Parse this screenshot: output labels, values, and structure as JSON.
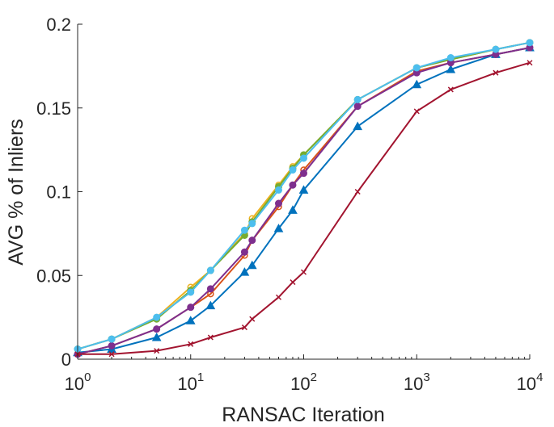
{
  "chart_data": {
    "type": "line",
    "title": "",
    "xlabel": "RANSAC Iteration",
    "ylabel": "AVG % of Inliers",
    "x_scale": "log",
    "xlim": [
      1,
      10000
    ],
    "ylim": [
      0,
      0.2
    ],
    "x_ticks": [
      {
        "base": "10",
        "exp": "0"
      },
      {
        "base": "10",
        "exp": "1"
      },
      {
        "base": "10",
        "exp": "2"
      },
      {
        "base": "10",
        "exp": "3"
      },
      {
        "base": "10",
        "exp": "4"
      }
    ],
    "y_ticks": [
      "0",
      "0.05",
      "0.1",
      "0.15",
      "0.2"
    ],
    "grid": false,
    "series": [
      {
        "color": "#0072BD",
        "marker": "triangle",
        "x": [
          1,
          2,
          5,
          10,
          15,
          30,
          35,
          60,
          80,
          100,
          300,
          1000,
          2000,
          5000,
          10000
        ],
        "values": [
          0.004,
          0.006,
          0.013,
          0.023,
          0.032,
          0.052,
          0.056,
          0.078,
          0.089,
          0.101,
          0.139,
          0.164,
          0.173,
          0.182,
          0.186
        ]
      },
      {
        "color": "#D95319",
        "marker": "circle-open",
        "x": [
          1,
          2,
          5,
          10,
          15,
          30,
          35,
          60,
          80,
          100,
          300,
          1000,
          2000,
          5000,
          10000
        ],
        "values": [
          0.003,
          0.008,
          0.018,
          0.031,
          0.039,
          0.062,
          0.071,
          0.091,
          0.104,
          0.113,
          0.151,
          0.172,
          0.177,
          0.182,
          0.186
        ]
      },
      {
        "color": "#EDB120",
        "marker": "circle-open",
        "x": [
          1,
          2,
          5,
          10,
          15,
          30,
          35,
          60,
          80,
          100,
          300,
          1000,
          2000,
          5000,
          10000
        ],
        "values": [
          0.006,
          0.012,
          0.025,
          0.043,
          0.053,
          0.075,
          0.084,
          0.104,
          0.115,
          0.122,
          0.155,
          0.174,
          0.179,
          0.185,
          0.189
        ]
      },
      {
        "color": "#77AC30",
        "marker": "circle",
        "x": [
          1,
          2,
          5,
          10,
          15,
          30,
          35,
          60,
          80,
          100,
          300,
          1000,
          2000,
          5000,
          10000
        ],
        "values": [
          0.006,
          0.012,
          0.024,
          0.041,
          0.053,
          0.074,
          0.082,
          0.103,
          0.114,
          0.122,
          0.155,
          0.174,
          0.179,
          0.185,
          0.189
        ]
      },
      {
        "color": "#7E2F8E",
        "marker": "circle",
        "x": [
          1,
          2,
          5,
          10,
          15,
          30,
          35,
          60,
          80,
          100,
          300,
          1000,
          2000,
          5000,
          10000
        ],
        "values": [
          0.003,
          0.008,
          0.018,
          0.031,
          0.042,
          0.064,
          0.071,
          0.093,
          0.104,
          0.111,
          0.151,
          0.171,
          0.177,
          0.182,
          0.186
        ]
      },
      {
        "color": "#4DBEEE",
        "marker": "circle",
        "x": [
          1,
          2,
          5,
          10,
          15,
          30,
          35,
          60,
          80,
          100,
          300,
          1000,
          2000,
          5000,
          10000
        ],
        "values": [
          0.006,
          0.012,
          0.025,
          0.04,
          0.053,
          0.077,
          0.081,
          0.101,
          0.113,
          0.12,
          0.155,
          0.174,
          0.18,
          0.185,
          0.189
        ]
      },
      {
        "color": "#A2142F",
        "marker": "x",
        "x": [
          1,
          2,
          5,
          10,
          15,
          30,
          35,
          60,
          80,
          100,
          300,
          1000,
          2000,
          5000,
          10000
        ],
        "values": [
          0.003,
          0.003,
          0.005,
          0.009,
          0.013,
          0.019,
          0.024,
          0.037,
          0.046,
          0.052,
          0.1,
          0.148,
          0.161,
          0.171,
          0.177
        ]
      }
    ]
  }
}
